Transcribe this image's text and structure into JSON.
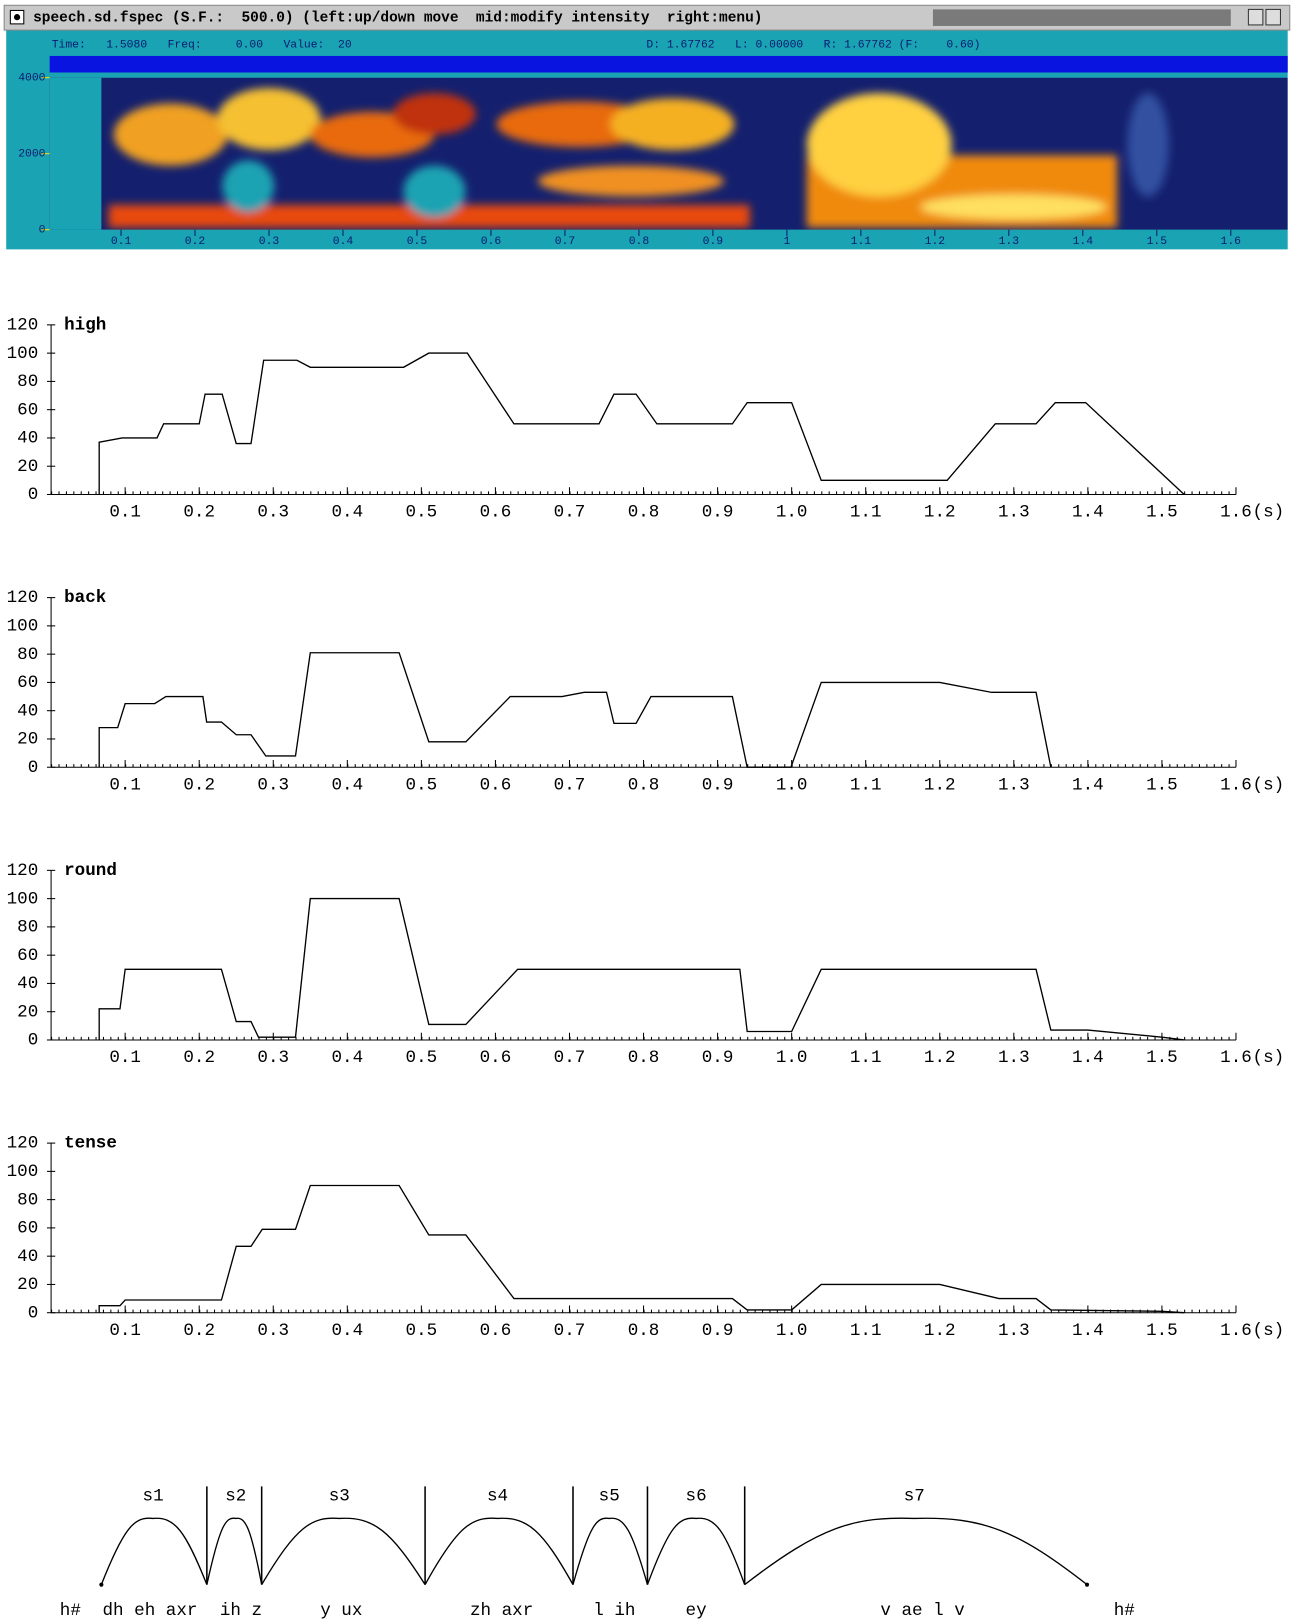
{
  "chart_data": [
    {
      "type": "spectrogram",
      "title": "speech.sd.fspec (S.F.:  500.0) (left:up/down move  mid:modify intensity  right:menu)",
      "subtitle": [
        "Time:   1.5080   Freq:     0.00   Value:  20",
        "D: 1.67762   L: 0.00000   R: 1.67762 (F:    0.60)"
      ],
      "xlim": [
        0,
        1.67762
      ],
      "xticks": [
        0.1,
        0.2,
        0.3,
        0.4,
        0.5,
        0.6,
        0.7,
        0.8,
        0.9,
        1,
        1.1,
        1.2,
        1.3,
        1.4,
        1.5,
        1.6
      ],
      "ylim": [
        0,
        4000
      ],
      "yticks": [
        0,
        2000,
        4000
      ]
    },
    {
      "type": "line",
      "title": "high",
      "color": "#000000",
      "xlabel": "(s)",
      "x": [
        0.065,
        0.065,
        0.096,
        0.143,
        0.152,
        0.2,
        0.208,
        0.231,
        0.25,
        0.27,
        0.287,
        0.332,
        0.35,
        0.476,
        0.51,
        0.562,
        0.625,
        0.74,
        0.76,
        0.79,
        0.818,
        0.92,
        0.94,
        1.0,
        1.04,
        1.21,
        1.275,
        1.33,
        1.356,
        1.397,
        1.53
      ],
      "values": [
        0,
        37,
        40,
        40,
        50,
        50,
        71,
        71,
        36,
        36,
        95,
        95,
        90,
        90,
        100,
        100,
        50,
        50,
        71,
        71,
        50,
        50,
        65,
        65,
        10,
        10,
        50,
        50,
        65,
        65,
        0
      ],
      "xlim": [
        0,
        1.6
      ],
      "xticks": [
        0.1,
        0.2,
        0.3,
        0.4,
        0.5,
        0.6,
        0.7,
        0.8,
        0.9,
        {
          "value": 1,
          "label": "1.0"
        },
        1.1,
        1.2,
        1.3,
        1.4,
        1.5,
        1.6
      ],
      "ylim": [
        0,
        120
      ],
      "yticks": [
        0,
        20,
        40,
        60,
        80,
        100,
        120
      ]
    },
    {
      "type": "line",
      "title": "back",
      "color": "#000000",
      "xlabel": "(s)",
      "x": [
        0.065,
        0.065,
        0.09,
        0.1,
        0.14,
        0.155,
        0.205,
        0.21,
        0.23,
        0.25,
        0.27,
        0.29,
        0.33,
        0.35,
        0.47,
        0.51,
        0.56,
        0.62,
        0.69,
        0.72,
        0.75,
        0.76,
        0.79,
        0.81,
        0.92,
        0.94,
        0.999,
        1.04,
        1.2,
        1.27,
        1.33,
        1.35
      ],
      "values": [
        0,
        28,
        28,
        45,
        45,
        50,
        50,
        32,
        32,
        23,
        23,
        8,
        8,
        81,
        81,
        18,
        18,
        50,
        50,
        53,
        53,
        31,
        31,
        50,
        50,
        0,
        0,
        60,
        60,
        53,
        53,
        0
      ],
      "xlim": [
        0,
        1.6
      ],
      "xticks": [
        0.1,
        0.2,
        0.3,
        0.4,
        0.5,
        0.6,
        0.7,
        0.8,
        0.9,
        {
          "value": 1,
          "label": "1.0"
        },
        1.1,
        1.2,
        1.3,
        1.4,
        1.5,
        1.6
      ],
      "ylim": [
        0,
        120
      ],
      "yticks": [
        0,
        20,
        40,
        60,
        80,
        100,
        120
      ]
    },
    {
      "type": "line",
      "title": "round",
      "color": "#000000",
      "xlabel": "(s)",
      "x": [
        0.065,
        0.065,
        0.093,
        0.1,
        0.23,
        0.25,
        0.27,
        0.28,
        0.33,
        0.35,
        0.47,
        0.51,
        0.56,
        0.63,
        0.93,
        0.94,
        1.0,
        1.04,
        1.33,
        1.35,
        1.4,
        1.5,
        1.53
      ],
      "values": [
        0,
        22,
        22,
        50,
        50,
        13,
        13,
        2,
        2,
        100,
        100,
        11,
        11,
        50,
        50,
        6,
        6,
        50,
        50,
        7,
        7,
        2,
        0
      ],
      "xlim": [
        0,
        1.6
      ],
      "xticks": [
        0.1,
        0.2,
        0.3,
        0.4,
        0.5,
        0.6,
        0.7,
        0.8,
        0.9,
        {
          "value": 1,
          "label": "1.0"
        },
        1.1,
        1.2,
        1.3,
        1.4,
        1.5,
        1.6
      ],
      "ylim": [
        0,
        120
      ],
      "yticks": [
        0,
        20,
        40,
        60,
        80,
        100,
        120
      ]
    },
    {
      "type": "line",
      "title": "tense",
      "color": "#000000",
      "xlabel": "(s)",
      "x": [
        0.065,
        0.065,
        0.093,
        0.1,
        0.23,
        0.25,
        0.27,
        0.285,
        0.33,
        0.35,
        0.47,
        0.51,
        0.56,
        0.625,
        0.92,
        0.94,
        1.0,
        1.04,
        1.2,
        1.28,
        1.33,
        1.35,
        1.5,
        1.53
      ],
      "values": [
        0,
        5,
        5,
        9,
        9,
        47,
        47,
        59,
        59,
        90,
        90,
        55,
        55,
        10,
        10,
        2,
        2,
        20,
        20,
        10,
        10,
        2,
        1,
        0
      ],
      "xlim": [
        0,
        1.6
      ],
      "xticks": [
        0.1,
        0.2,
        0.3,
        0.4,
        0.5,
        0.6,
        0.7,
        0.8,
        0.9,
        {
          "value": 1,
          "label": "1.0"
        },
        1.1,
        1.2,
        1.3,
        1.4,
        1.5,
        1.6
      ],
      "ylim": [
        0,
        120
      ],
      "yticks": [
        0,
        20,
        40,
        60,
        80,
        100,
        120
      ]
    }
  ],
  "syllable_tier": {
    "syllables": [
      "s1",
      "s2",
      "s3",
      "s4",
      "s5",
      "s6",
      "s7"
    ],
    "phones": [
      "h#",
      "dh eh axr",
      "ih z",
      "y ux",
      "zh axr",
      "l ih",
      "ey",
      "v ae l v",
      "h#"
    ]
  }
}
